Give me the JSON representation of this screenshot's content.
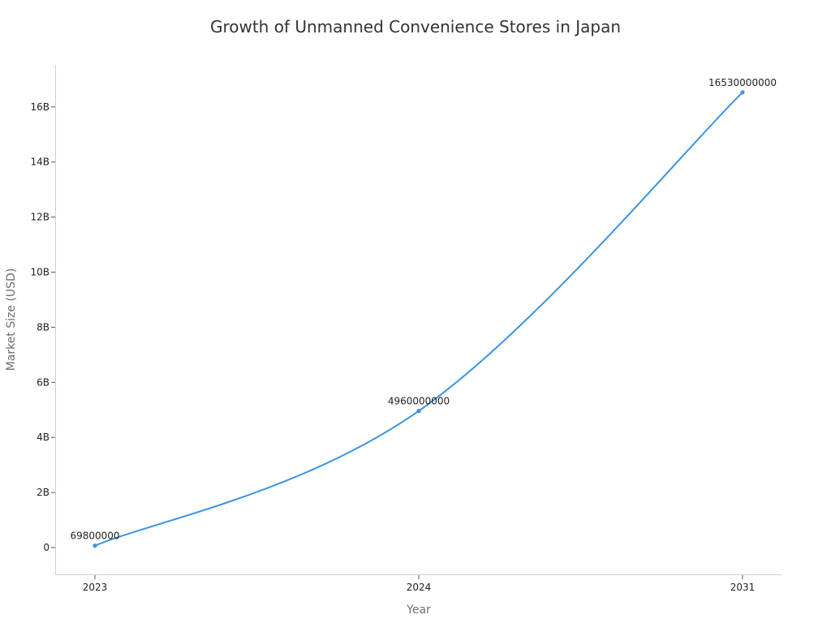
{
  "chart_data": {
    "type": "line",
    "title": "Growth of Unmanned Convenience Stores in Japan",
    "xlabel": "Year",
    "ylabel": "Market Size (USD)",
    "categories": [
      "2023",
      "2024",
      "2031"
    ],
    "series": [
      {
        "name": "Market Size (USD)",
        "values": [
          69800000,
          4960000000,
          16530000000
        ],
        "color": "#3b93e0"
      }
    ],
    "data_labels": [
      "69800000",
      "4960000000",
      "16530000000"
    ],
    "y_ticks": [
      {
        "value": 0,
        "label": "0"
      },
      {
        "value": 2000000000,
        "label": "2B"
      },
      {
        "value": 4000000000,
        "label": "4B"
      },
      {
        "value": 6000000000,
        "label": "6B"
      },
      {
        "value": 8000000000,
        "label": "8B"
      },
      {
        "value": 10000000000,
        "label": "10B"
      },
      {
        "value": 12000000000,
        "label": "12B"
      },
      {
        "value": 14000000000,
        "label": "14B"
      },
      {
        "value": 16000000000,
        "label": "16B"
      }
    ],
    "ylim": [
      -950000000,
      17550000000
    ],
    "grid": false,
    "legend": "none",
    "curve": "smooth"
  },
  "colors": {
    "line": "#3b93e0",
    "axis": "#d0d0d0",
    "text": "#222222",
    "axis_title": "#6e6e6e"
  }
}
